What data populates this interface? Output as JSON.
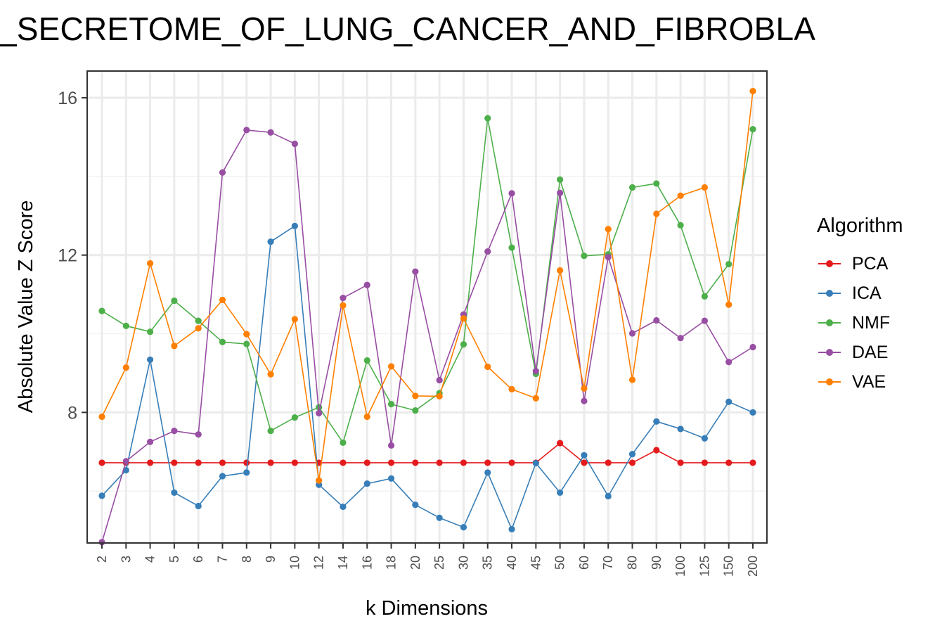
{
  "chart_data": {
    "type": "line",
    "title": "_SECRETOME_OF_LUNG_CANCER_AND_FIBROBLA",
    "xlabel": "k Dimensions",
    "ylabel": "Absolute Value Z Score",
    "categories": [
      "2",
      "3",
      "4",
      "5",
      "6",
      "7",
      "8",
      "9",
      "10",
      "12",
      "14",
      "16",
      "18",
      "20",
      "25",
      "30",
      "35",
      "40",
      "45",
      "50",
      "60",
      "70",
      "80",
      "90",
      "100",
      "125",
      "150",
      "200"
    ],
    "y_ticks": [
      8,
      12,
      16
    ],
    "ylim": [
      4.68,
      16.68
    ],
    "grid": true,
    "legend_title": "Algorithm",
    "legend_position": "right",
    "series": [
      {
        "name": "PCA",
        "color": "#e41a1c",
        "values": [
          6.72,
          6.72,
          6.72,
          6.72,
          6.72,
          6.72,
          6.72,
          6.72,
          6.72,
          6.72,
          6.72,
          6.72,
          6.72,
          6.72,
          6.72,
          6.72,
          6.72,
          6.72,
          6.72,
          7.22,
          6.72,
          6.72,
          6.72,
          7.04,
          6.72,
          6.72,
          6.72,
          6.72
        ]
      },
      {
        "name": "ICA",
        "color": "#377eb8",
        "values": [
          5.88,
          6.53,
          9.34,
          5.96,
          5.62,
          6.38,
          6.47,
          12.34,
          12.74,
          6.16,
          5.6,
          6.19,
          6.32,
          5.65,
          5.32,
          5.08,
          6.47,
          5.03,
          6.71,
          5.96,
          6.91,
          5.87,
          6.94,
          7.77,
          7.58,
          7.34,
          8.27,
          8.0
        ]
      },
      {
        "name": "NMF",
        "color": "#4daf4a",
        "values": [
          10.58,
          10.2,
          10.05,
          10.84,
          10.33,
          9.79,
          9.74,
          7.53,
          7.87,
          8.13,
          7.23,
          9.32,
          8.21,
          8.05,
          8.49,
          9.73,
          15.48,
          12.19,
          8.98,
          13.92,
          11.98,
          12.02,
          13.72,
          13.82,
          12.76,
          10.95,
          11.77,
          15.2
        ]
      },
      {
        "name": "DAE",
        "color": "#984ea3",
        "values": [
          4.7,
          6.76,
          7.25,
          7.53,
          7.44,
          14.1,
          15.18,
          15.12,
          14.83,
          7.98,
          10.91,
          11.24,
          7.16,
          11.58,
          8.82,
          10.49,
          12.09,
          13.57,
          9.05,
          13.58,
          8.29,
          11.95,
          10.01,
          10.34,
          9.89,
          10.33,
          9.28,
          9.66
        ]
      },
      {
        "name": "VAE",
        "color": "#ff7f00",
        "values": [
          7.89,
          9.14,
          11.79,
          9.69,
          10.14,
          10.86,
          9.99,
          8.97,
          10.37,
          6.27,
          10.72,
          7.89,
          9.17,
          8.42,
          8.41,
          10.39,
          9.16,
          8.59,
          8.36,
          11.61,
          8.61,
          12.66,
          8.83,
          13.05,
          13.51,
          13.72,
          10.74,
          16.17
        ]
      }
    ]
  }
}
